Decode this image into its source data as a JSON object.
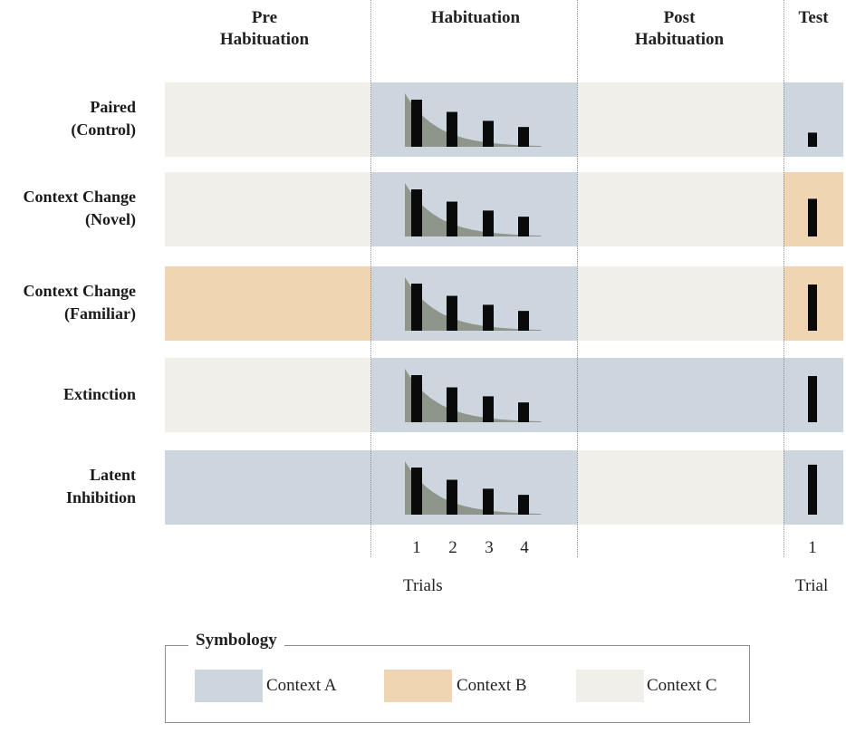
{
  "phases": {
    "pre": "Pre\nHabituation",
    "habituation": "Habituation",
    "post": "Post\nHabituation",
    "test": "Test"
  },
  "colors": {
    "context_a": "#cdd5de",
    "context_b": "#efd5b1",
    "context_c": "#f1efea",
    "bar": "#0a0a0a",
    "curve": "#8e958a"
  },
  "rows": [
    {
      "label": "Paired\n(Control)",
      "pre": "C",
      "habituation": "A",
      "post": "C",
      "test": "A",
      "test_response": 0.3
    },
    {
      "label": "Context Change\n(Novel)",
      "pre": "C",
      "habituation": "A",
      "post": "C",
      "test": "B",
      "test_response": 0.8
    },
    {
      "label": "Context Change\n(Familiar)",
      "pre": "B",
      "habituation": "A",
      "post": "C",
      "test": "B",
      "test_response": 0.98
    },
    {
      "label": "Extinction",
      "pre": "C",
      "habituation": "A",
      "post": "A",
      "test": "A",
      "test_response": 0.98
    },
    {
      "label": "Latent\nInhibition",
      "pre": "A",
      "habituation": "A",
      "post": "C",
      "test": "A",
      "test_response": 1.06
    }
  ],
  "habituation_responses": [
    1.0,
    0.74,
    0.55,
    0.42
  ],
  "trials": [
    "1",
    "2",
    "3",
    "4"
  ],
  "trials_label": "Trials",
  "test_trial": [
    "1"
  ],
  "test_trial_label": "Trial",
  "legend": {
    "title": "Symbology",
    "items": [
      {
        "label": "Context A",
        "context": "A"
      },
      {
        "label": "Context B",
        "context": "B"
      },
      {
        "label": "Context C",
        "context": "C"
      }
    ]
  }
}
